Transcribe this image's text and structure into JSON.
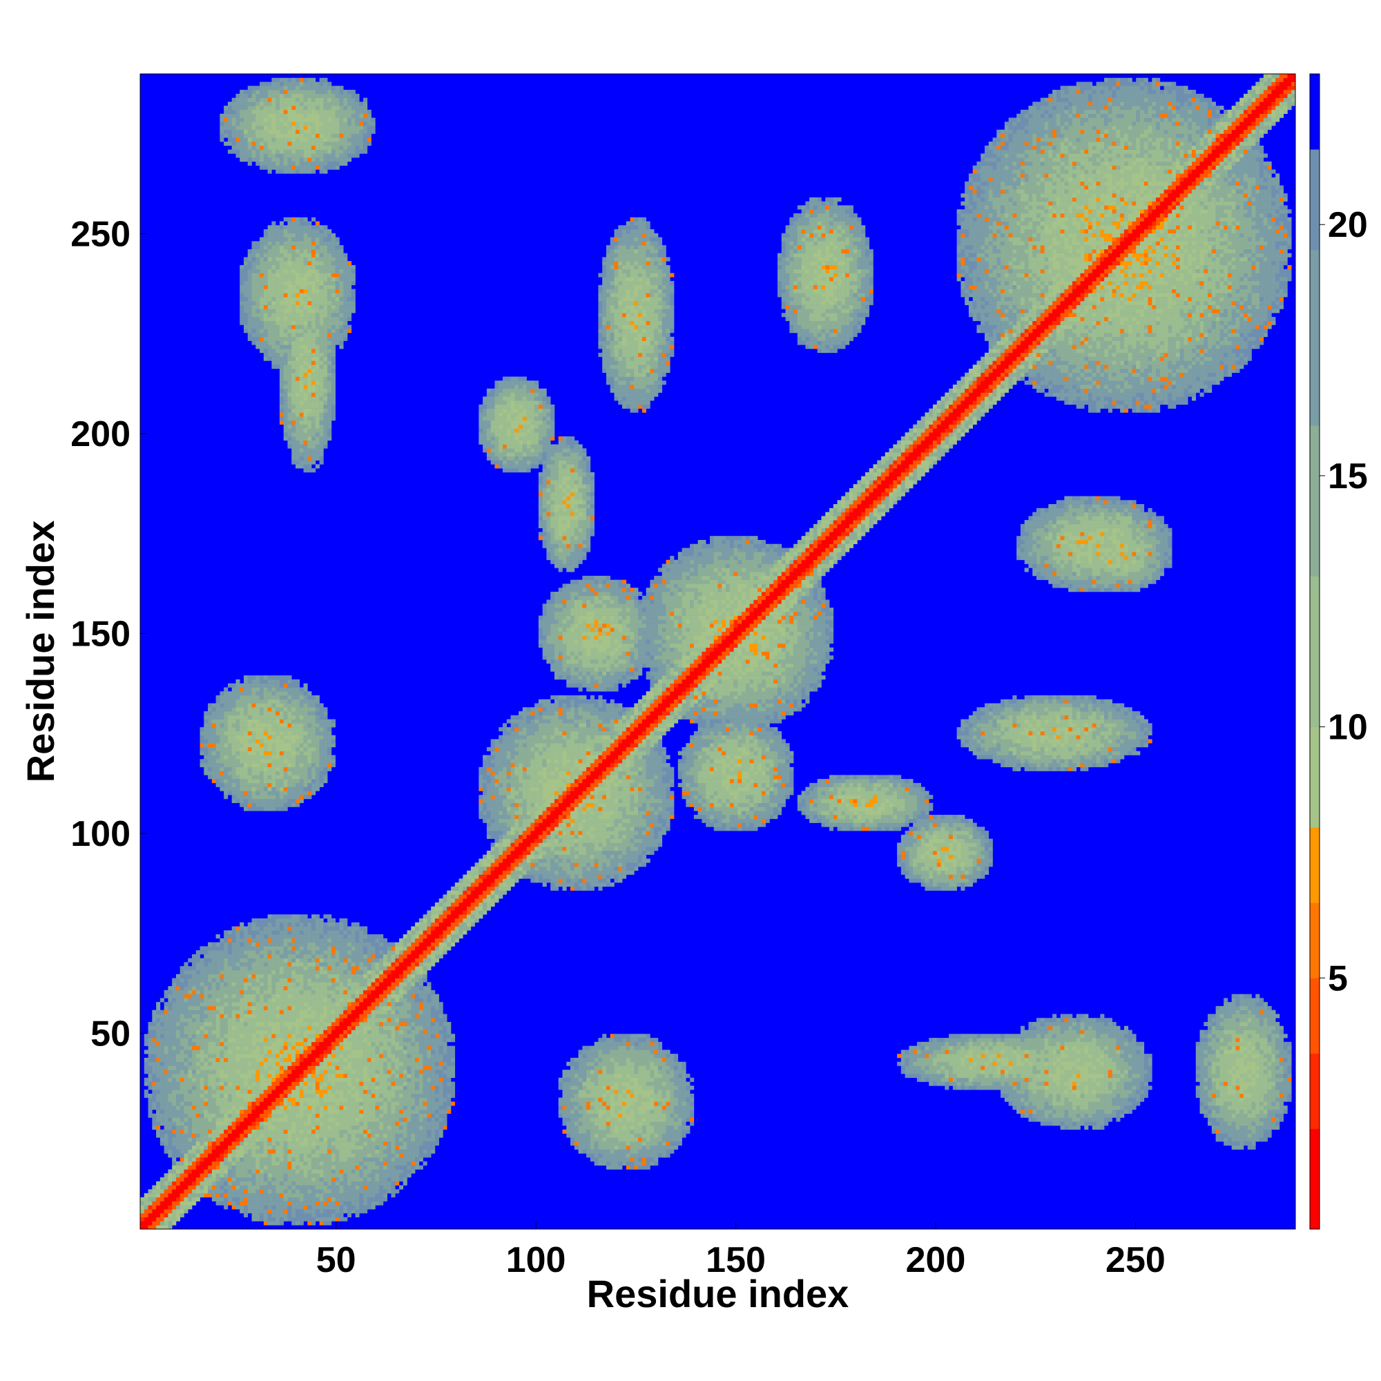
{
  "chart_data": {
    "type": "heatmap",
    "title": "",
    "xlabel": "Residue index",
    "ylabel": "Residue index",
    "n_residues": 290,
    "xlim": [
      1,
      290
    ],
    "ylim": [
      1,
      290
    ],
    "xticks": [
      50,
      100,
      150,
      200,
      250
    ],
    "yticks": [
      50,
      100,
      150,
      200,
      250
    ],
    "colorbar": {
      "ticks": [
        5,
        10,
        15,
        20
      ],
      "range": [
        0,
        23
      ],
      "levels": [
        {
          "min": 0,
          "max": 2,
          "color": "#ff0000"
        },
        {
          "min": 2,
          "max": 3.5,
          "color": "#ff2a00"
        },
        {
          "min": 3.5,
          "max": 5,
          "color": "#ff5500"
        },
        {
          "min": 5,
          "max": 6.5,
          "color": "#ff7700"
        },
        {
          "min": 6.5,
          "max": 8,
          "color": "#ff9900"
        },
        {
          "min": 8,
          "max": 10,
          "color": "#a6c489"
        },
        {
          "min": 10,
          "max": 13,
          "color": "#9bbd8f"
        },
        {
          "min": 13,
          "max": 16,
          "color": "#8cae97"
        },
        {
          "min": 16,
          "max": 19.5,
          "color": "#7a9da6"
        },
        {
          "min": 19.5,
          "max": 21.5,
          "color": "#6e8fb0"
        },
        {
          "min": 21.5,
          "max": 23,
          "color": "#0000ff"
        }
      ]
    },
    "background_color": "#0000ff",
    "diagonal": {
      "start": 1,
      "end": 290,
      "color": "#ff0000"
    },
    "contact_regions": [
      {
        "x": [
          1,
          80
        ],
        "y": [
          1,
          80
        ],
        "intensity": 0.55
      },
      {
        "x": [
          85,
          135
        ],
        "y": [
          85,
          135
        ],
        "intensity": 0.5
      },
      {
        "x": [
          125,
          175
        ],
        "y": [
          125,
          175
        ],
        "intensity": 0.55
      },
      {
        "x": [
          205,
          290
        ],
        "y": [
          205,
          290
        ],
        "intensity": 0.6
      },
      {
        "x": [
          100,
          115
        ],
        "y": [
          165,
          200
        ],
        "intensity": 0.5
      },
      {
        "x": [
          165,
          200
        ],
        "y": [
          100,
          115
        ],
        "intensity": 0.5
      },
      {
        "x": [
          35,
          50
        ],
        "y": [
          190,
          240
        ],
        "intensity": 0.45
      },
      {
        "x": [
          190,
          240
        ],
        "y": [
          35,
          50
        ],
        "intensity": 0.45
      },
      {
        "x": [
          160,
          185
        ],
        "y": [
          220,
          260
        ],
        "intensity": 0.45
      },
      {
        "x": [
          220,
          260
        ],
        "y": [
          160,
          185
        ],
        "intensity": 0.45
      },
      {
        "x": [
          190,
          215
        ],
        "y": [
          85,
          105
        ],
        "intensity": 0.5
      },
      {
        "x": [
          85,
          105
        ],
        "y": [
          190,
          215
        ],
        "intensity": 0.5
      },
      {
        "x": [
          15,
          50
        ],
        "y": [
          105,
          140
        ],
        "intensity": 0.45
      },
      {
        "x": [
          105,
          140
        ],
        "y": [
          15,
          50
        ],
        "intensity": 0.45
      },
      {
        "x": [
          205,
          255
        ],
        "y": [
          115,
          135
        ],
        "intensity": 0.4
      },
      {
        "x": [
          115,
          135
        ],
        "y": [
          205,
          255
        ],
        "intensity": 0.4
      },
      {
        "x": [
          230,
          260
        ],
        "y": [
          160,
          180
        ],
        "intensity": 0.45
      },
      {
        "x": [
          265,
          290
        ],
        "y": [
          20,
          60
        ],
        "intensity": 0.4
      },
      {
        "x": [
          20,
          60
        ],
        "y": [
          265,
          290
        ],
        "intensity": 0.4
      },
      {
        "x": [
          135,
          165
        ],
        "y": [
          100,
          130
        ],
        "intensity": 0.45
      },
      {
        "x": [
          100,
          130
        ],
        "y": [
          135,
          165
        ],
        "intensity": 0.45
      },
      {
        "x": [
          215,
          255
        ],
        "y": [
          25,
          55
        ],
        "intensity": 0.4
      },
      {
        "x": [
          25,
          55
        ],
        "y": [
          215,
          255
        ],
        "intensity": 0.4
      }
    ]
  }
}
